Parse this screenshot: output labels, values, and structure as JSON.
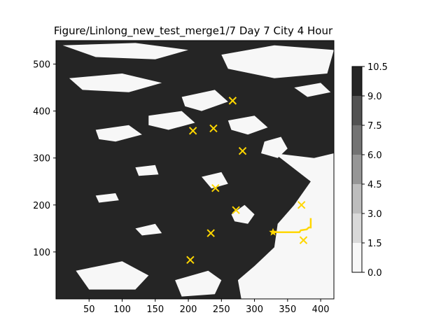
{
  "chart_data": {
    "type": "heatmap",
    "title": "Figure/Linlong_new_test_merge1/7 Day 7 City 4 Hour",
    "xlabel": "",
    "ylabel": "",
    "xlim": [
      0,
      420
    ],
    "ylim": [
      0,
      550
    ],
    "x_ticks": [
      50,
      100,
      150,
      200,
      250,
      300,
      350,
      400
    ],
    "y_ticks": [
      100,
      200,
      300,
      400,
      500
    ],
    "grid": false,
    "field_description_values": [
      0.0,
      10.5
    ],
    "colorbar": {
      "levels": [
        0.0,
        1.5,
        3.0,
        4.5,
        6.0,
        7.5,
        9.0,
        10.5
      ],
      "tick_labels": [
        "0.0",
        "1.5",
        "3.0",
        "4.5",
        "6.0",
        "7.5",
        "9.0",
        "10.5"
      ],
      "colors": [
        "#f7f7f7",
        "#d9d9d9",
        "#bdbdbd",
        "#969696",
        "#737373",
        "#525252",
        "#252525"
      ]
    },
    "light_regions": [
      {
        "points": [
          [
            330,
            310
          ],
          [
            360,
            305
          ],
          [
            390,
            300
          ],
          [
            420,
            310
          ],
          [
            420,
            0
          ],
          [
            280,
            0
          ],
          [
            275,
            40
          ],
          [
            300,
            70
          ],
          [
            330,
            110
          ],
          [
            335,
            160
          ],
          [
            360,
            200
          ],
          [
            385,
            250
          ]
        ]
      },
      {
        "points": [
          [
            265,
            180
          ],
          [
            285,
            200
          ],
          [
            300,
            180
          ],
          [
            290,
            160
          ],
          [
            270,
            165
          ]
        ]
      },
      {
        "points": [
          [
            315,
            335
          ],
          [
            340,
            345
          ],
          [
            350,
            320
          ],
          [
            335,
            300
          ],
          [
            310,
            310
          ]
        ]
      },
      {
        "points": [
          [
            180,
            40
          ],
          [
            230,
            60
          ],
          [
            250,
            40
          ],
          [
            240,
            10
          ],
          [
            190,
            5
          ]
        ]
      },
      {
        "points": [
          [
            30,
            60
          ],
          [
            100,
            80
          ],
          [
            140,
            50
          ],
          [
            120,
            20
          ],
          [
            50,
            20
          ]
        ]
      },
      {
        "points": [
          [
            10,
            540
          ],
          [
            120,
            545
          ],
          [
            200,
            530
          ],
          [
            150,
            510
          ],
          [
            60,
            515
          ]
        ]
      },
      {
        "points": [
          [
            250,
            520
          ],
          [
            330,
            540
          ],
          [
            420,
            530
          ],
          [
            410,
            480
          ],
          [
            330,
            470
          ],
          [
            260,
            490
          ]
        ]
      },
      {
        "points": [
          [
            20,
            470
          ],
          [
            100,
            480
          ],
          [
            160,
            460
          ],
          [
            110,
            440
          ],
          [
            40,
            445
          ]
        ]
      },
      {
        "points": [
          [
            190,
            430
          ],
          [
            240,
            445
          ],
          [
            260,
            420
          ],
          [
            220,
            400
          ],
          [
            195,
            410
          ]
        ]
      },
      {
        "points": [
          [
            140,
            390
          ],
          [
            190,
            400
          ],
          [
            210,
            375
          ],
          [
            170,
            360
          ],
          [
            140,
            370
          ]
        ]
      },
      {
        "points": [
          [
            260,
            380
          ],
          [
            300,
            390
          ],
          [
            320,
            365
          ],
          [
            290,
            350
          ],
          [
            265,
            360
          ]
        ]
      },
      {
        "points": [
          [
            60,
            360
          ],
          [
            110,
            370
          ],
          [
            130,
            350
          ],
          [
            90,
            335
          ],
          [
            65,
            340
          ]
        ]
      },
      {
        "points": [
          [
            220,
            260
          ],
          [
            250,
            270
          ],
          [
            260,
            245
          ],
          [
            235,
            235
          ]
        ]
      },
      {
        "points": [
          [
            120,
            280
          ],
          [
            150,
            285
          ],
          [
            155,
            265
          ],
          [
            125,
            262
          ]
        ]
      },
      {
        "points": [
          [
            60,
            220
          ],
          [
            90,
            225
          ],
          [
            95,
            210
          ],
          [
            65,
            205
          ]
        ]
      },
      {
        "points": [
          [
            120,
            150
          ],
          [
            150,
            160
          ],
          [
            160,
            140
          ],
          [
            130,
            135
          ]
        ]
      },
      {
        "points": [
          [
            360,
            450
          ],
          [
            400,
            460
          ],
          [
            415,
            440
          ],
          [
            380,
            430
          ]
        ]
      }
    ],
    "markers_x": [
      {
        "x": 267,
        "y": 422
      },
      {
        "x": 207,
        "y": 358
      },
      {
        "x": 238,
        "y": 363
      },
      {
        "x": 282,
        "y": 315
      },
      {
        "x": 241,
        "y": 236
      },
      {
        "x": 272,
        "y": 189
      },
      {
        "x": 371,
        "y": 200
      },
      {
        "x": 234,
        "y": 140
      },
      {
        "x": 374,
        "y": 125
      },
      {
        "x": 203,
        "y": 83
      }
    ],
    "marker_star": {
      "x": 328,
      "y": 142
    },
    "route": [
      [
        328,
        142
      ],
      [
        342,
        142
      ],
      [
        368,
        142
      ],
      [
        370,
        146
      ],
      [
        379,
        148
      ],
      [
        382,
        152
      ],
      [
        385,
        152
      ],
      [
        385,
        172
      ]
    ],
    "marker_color": "#ffd700"
  }
}
